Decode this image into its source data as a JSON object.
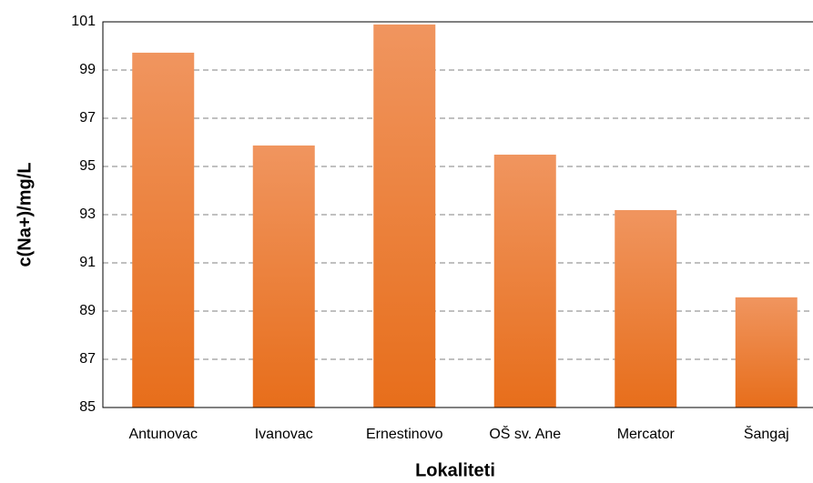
{
  "chart_data": {
    "type": "bar",
    "x_label": "Lokaliteti",
    "y_label": "c(Na+)/mg/L",
    "categories": [
      "Antunovac",
      "Ivanovac",
      "Ernestinovo",
      "OŠ sv. Ane",
      "Mercator",
      "Šangaj"
    ],
    "values": [
      99.72,
      95.87,
      100.89,
      95.49,
      93.19,
      89.57
    ],
    "color": "#ed7d31",
    "ylim": [
      85,
      101
    ],
    "yticks": [
      85,
      87,
      89,
      91,
      93,
      95,
      97,
      99,
      101
    ],
    "grid": true
  }
}
